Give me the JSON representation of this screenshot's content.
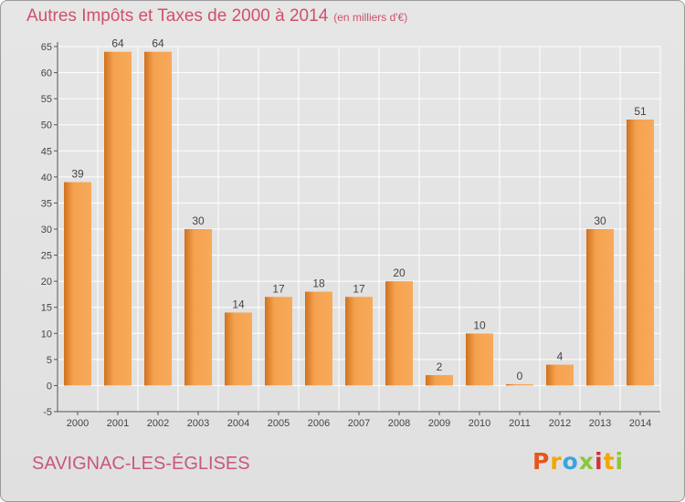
{
  "header": {
    "title": "Autres Impôts et Taxes de 2000 à 2014",
    "unit": "(en milliers d'€)"
  },
  "footer": {
    "commune": "SAVIGNAC-LES-ÉGLISES",
    "logo": "Proxiti",
    "logo_colors": [
      "#e8551d",
      "#f5a500",
      "#3aa5dc",
      "#8cc63f",
      "#d0313d",
      "#f5a500",
      "#8cc63f"
    ]
  },
  "colors": {
    "bar_light": "#f5a24f",
    "bar_dark": "#d0721f",
    "axis": "#555555",
    "grid": "#ffffff",
    "text": "#444444"
  },
  "chart_data": {
    "type": "bar",
    "title": "Autres Impôts et Taxes de 2000 à 2014",
    "subtitle": "(en milliers d'€)",
    "xlabel": "",
    "ylabel": "",
    "categories": [
      "2000",
      "2001",
      "2002",
      "2003",
      "2004",
      "2005",
      "2006",
      "2007",
      "2008",
      "2009",
      "2010",
      "2011",
      "2012",
      "2013",
      "2014"
    ],
    "values": [
      39,
      64,
      64,
      30,
      14,
      17,
      18,
      17,
      20,
      2,
      10,
      0,
      4,
      30,
      51
    ],
    "ylim": [
      -5,
      65
    ],
    "yticks": [
      -5,
      0,
      5,
      10,
      15,
      20,
      25,
      30,
      35,
      40,
      45,
      50,
      55,
      60,
      65
    ],
    "grid": true,
    "legend": "none"
  }
}
